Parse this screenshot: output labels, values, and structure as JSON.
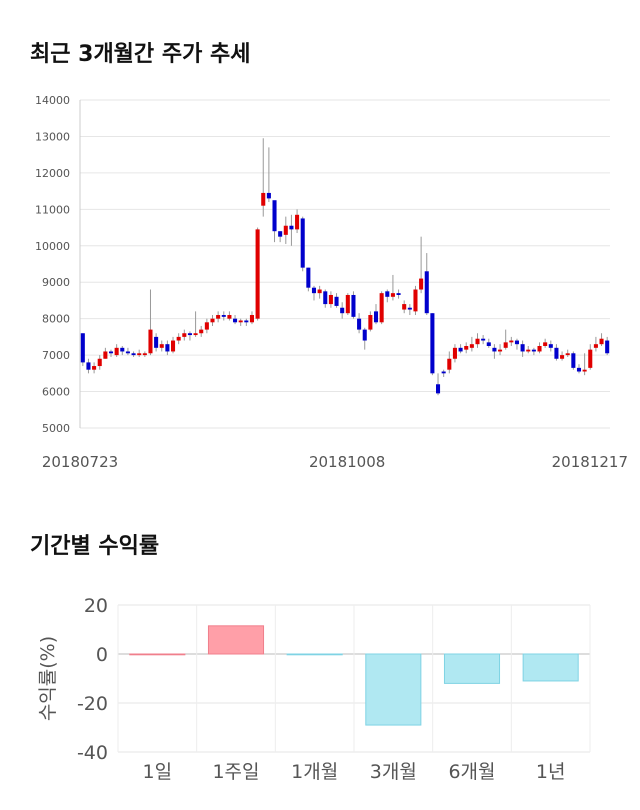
{
  "sections": {
    "price_title": "최근 3개월간 주가 추세",
    "returns_title": "기간별 수익률"
  },
  "chart_data": [
    {
      "type": "candlestick",
      "title": "최근 3개월간 주가 추세",
      "ylim": [
        5000,
        14000
      ],
      "y_ticks": [
        5000,
        6000,
        7000,
        8000,
        9000,
        10000,
        11000,
        12000,
        13000,
        14000
      ],
      "x_tick_labels": [
        "20180723",
        "20181008",
        "20181217"
      ],
      "grid": true,
      "colors": {
        "up": "#e00000",
        "down": "#0000cc"
      },
      "candles": [
        [
          7600,
          6800,
          7600,
          6700
        ],
        [
          6800,
          6600,
          6900,
          6500
        ],
        [
          6600,
          6700,
          6800,
          6500
        ],
        [
          6700,
          6900,
          7000,
          6600
        ],
        [
          6900,
          7100,
          7200,
          6900
        ],
        [
          7100,
          7050,
          7150,
          6950
        ],
        [
          7000,
          7200,
          7300,
          6950
        ],
        [
          7200,
          7100,
          7250,
          7000
        ],
        [
          7100,
          7050,
          7200,
          7000
        ],
        [
          7050,
          7000,
          7100,
          6950
        ],
        [
          7000,
          7050,
          7150,
          6950
        ],
        [
          7000,
          7050,
          7100,
          6950
        ],
        [
          7050,
          7700,
          8800,
          7000
        ],
        [
          7500,
          7200,
          7600,
          7100
        ],
        [
          7200,
          7300,
          7400,
          7100
        ],
        [
          7300,
          7100,
          7400,
          7000
        ],
        [
          7100,
          7400,
          7500,
          7050
        ],
        [
          7400,
          7500,
          7600,
          7300
        ],
        [
          7500,
          7600,
          7700,
          7400
        ],
        [
          7600,
          7550,
          7650,
          7400
        ],
        [
          7550,
          7600,
          8200,
          7500
        ],
        [
          7600,
          7700,
          7800,
          7500
        ],
        [
          7700,
          7900,
          8000,
          7600
        ],
        [
          7900,
          8000,
          8100,
          7800
        ],
        [
          8000,
          8100,
          8200,
          7900
        ],
        [
          8100,
          8050,
          8200,
          7950
        ],
        [
          8000,
          8100,
          8200,
          7950
        ],
        [
          8000,
          7900,
          8100,
          7850
        ],
        [
          7900,
          7950,
          8000,
          7800
        ],
        [
          7950,
          7900,
          8000,
          7800
        ],
        [
          7900,
          8100,
          8200,
          7850
        ],
        [
          8000,
          10450,
          10500,
          7950
        ],
        [
          11100,
          11450,
          12950,
          10800
        ],
        [
          11450,
          11300,
          12700,
          11200
        ],
        [
          11250,
          10400,
          11000,
          10100
        ],
        [
          10400,
          10250,
          10400,
          10100
        ],
        [
          10300,
          10550,
          10800,
          10050
        ],
        [
          10550,
          10450,
          10850,
          10000
        ],
        [
          10450,
          10850,
          11000,
          10350
        ],
        [
          10750,
          9400,
          10800,
          9300
        ],
        [
          9400,
          8850,
          9400,
          8750
        ],
        [
          8850,
          8700,
          8900,
          8500
        ],
        [
          8700,
          8800,
          8900,
          8550
        ],
        [
          8750,
          8400,
          8800,
          8300
        ],
        [
          8400,
          8650,
          8750,
          8300
        ],
        [
          8600,
          8350,
          8700,
          8300
        ],
        [
          8300,
          8150,
          8450,
          8000
        ],
        [
          8150,
          8650,
          8700,
          8100
        ],
        [
          8650,
          8050,
          8750,
          8000
        ],
        [
          8000,
          7700,
          8150,
          7600
        ],
        [
          7700,
          7400,
          7750,
          7150
        ],
        [
          7700,
          8100,
          8200,
          7650
        ],
        [
          8200,
          7900,
          8400,
          7850
        ],
        [
          7900,
          8700,
          8750,
          7850
        ],
        [
          8750,
          8600,
          8800,
          8450
        ],
        [
          8600,
          8700,
          9200,
          8500
        ],
        [
          8700,
          8650,
          8800,
          8550
        ],
        [
          8250,
          8400,
          8500,
          8150
        ],
        [
          8300,
          8250,
          8400,
          8100
        ],
        [
          8200,
          8800,
          8900,
          8100
        ],
        [
          8800,
          9100,
          10250,
          8700
        ],
        [
          9300,
          8150,
          9800,
          8100
        ],
        [
          8150,
          6500,
          8150,
          6450
        ],
        [
          6200,
          5950,
          6500,
          5900
        ],
        [
          6550,
          6500,
          6600,
          6400
        ],
        [
          6600,
          6900,
          7100,
          6500
        ],
        [
          6900,
          7200,
          7300,
          6800
        ],
        [
          7200,
          7100,
          7300,
          7050
        ],
        [
          7150,
          7250,
          7350,
          7050
        ],
        [
          7200,
          7300,
          7500,
          7100
        ],
        [
          7300,
          7450,
          7600,
          7200
        ],
        [
          7450,
          7400,
          7550,
          7300
        ],
        [
          7350,
          7250,
          7450,
          7200
        ],
        [
          7200,
          7100,
          7300,
          6900
        ],
        [
          7100,
          7150,
          7300,
          7000
        ],
        [
          7200,
          7350,
          7700,
          7150
        ],
        [
          7350,
          7400,
          7500,
          7250
        ],
        [
          7400,
          7300,
          7450,
          7150
        ],
        [
          7300,
          7100,
          7400,
          6950
        ],
        [
          7100,
          7150,
          7250,
          7050
        ],
        [
          7150,
          7100,
          7200,
          7000
        ],
        [
          7100,
          7250,
          7350,
          7050
        ],
        [
          7250,
          7350,
          7450,
          7200
        ],
        [
          7300,
          7200,
          7400,
          7100
        ],
        [
          7200,
          6900,
          7300,
          6850
        ],
        [
          6900,
          7000,
          7100,
          6850
        ],
        [
          7000,
          7050,
          7150,
          6950
        ],
        [
          7050,
          6650,
          7100,
          6600
        ],
        [
          6650,
          6550,
          6750,
          6500
        ],
        [
          6550,
          6600,
          7050,
          6450
        ],
        [
          6650,
          7150,
          7300,
          6600
        ],
        [
          7200,
          7300,
          7500,
          7100
        ],
        [
          7300,
          7450,
          7600,
          7250
        ],
        [
          7400,
          7050,
          7500,
          7000
        ]
      ]
    },
    {
      "type": "bar",
      "title": "기간별 수익률",
      "ylabel": "수익률(%)",
      "ylim": [
        -40,
        20
      ],
      "y_ticks": [
        -40,
        -20,
        0,
        20
      ],
      "categories": [
        "1일",
        "1주일",
        "1개월",
        "3개월",
        "6개월",
        "1년"
      ],
      "values": [
        0,
        11.5,
        -0.3,
        -29,
        -12,
        -11
      ],
      "grid": true,
      "colors": {
        "positive": "#ff9fa8",
        "negative": "#b0e8f2",
        "positive_stroke": "#f07f8c",
        "negative_stroke": "#7fd3e4"
      }
    }
  ]
}
